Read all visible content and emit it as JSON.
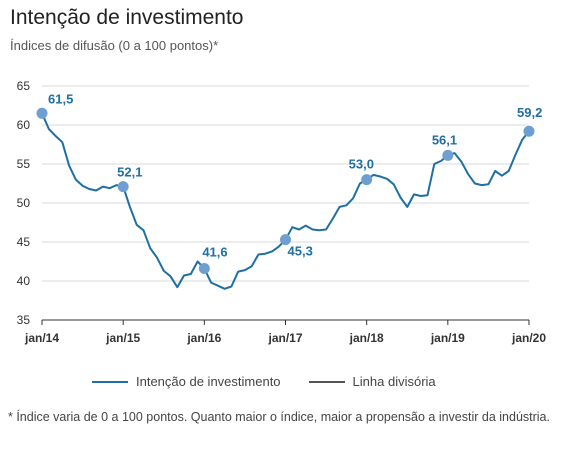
{
  "title": "Intenção de investimento",
  "subtitle": "Índices de difusão (0 a 100 pontos)*",
  "footnote": "* Índice varia de 0 a 100 pontos. Quanto maior o índice, maior a propensão a investir da indústria.",
  "colors": {
    "series": "#1f6fa3",
    "marker": "#6e9fd0",
    "divider": "#555555",
    "label": "#1f6fa3"
  },
  "chart_data": {
    "type": "line",
    "ylim": [
      35,
      65
    ],
    "yticks": [
      35,
      40,
      45,
      50,
      55,
      60,
      65
    ],
    "xticks": [
      {
        "label": "jan/14",
        "index": 0
      },
      {
        "label": "jan/15",
        "index": 12
      },
      {
        "label": "jan/16",
        "index": 24
      },
      {
        "label": "jan/17",
        "index": 36
      },
      {
        "label": "jan/18",
        "index": 48
      },
      {
        "label": "jan/19",
        "index": 60
      },
      {
        "label": "jan/20",
        "index": 72
      }
    ],
    "series": [
      {
        "name": "Intenção de investimento",
        "start": "jan/14",
        "frequency": "monthly",
        "values": [
          61.5,
          59.5,
          58.6,
          57.8,
          54.8,
          53.0,
          52.2,
          51.8,
          51.6,
          52.1,
          51.9,
          52.3,
          52.1,
          49.5,
          47.2,
          46.5,
          44.2,
          43.0,
          41.3,
          40.6,
          39.2,
          40.7,
          40.9,
          42.5,
          41.6,
          39.8,
          39.4,
          39.0,
          39.3,
          41.2,
          41.4,
          41.9,
          43.4,
          43.5,
          43.8,
          44.4,
          45.3,
          46.9,
          46.6,
          47.1,
          46.6,
          46.5,
          46.6,
          48.0,
          49.5,
          49.7,
          50.6,
          52.5,
          53.0,
          53.6,
          53.4,
          53.1,
          52.4,
          50.7,
          49.5,
          51.1,
          50.9,
          51.0,
          55.0,
          55.4,
          56.1,
          56.4,
          55.3,
          53.7,
          52.5,
          52.3,
          52.4,
          54.1,
          53.5,
          54.1,
          56.2,
          58.1,
          59.2
        ]
      }
    ],
    "annotations": [
      {
        "index": 0,
        "value": 61.5,
        "text": "61,5"
      },
      {
        "index": 12,
        "value": 52.1,
        "text": "52,1"
      },
      {
        "index": 24,
        "value": 41.6,
        "text": "41,6"
      },
      {
        "index": 36,
        "value": 45.3,
        "text": "45,3"
      },
      {
        "index": 48,
        "value": 53.0,
        "text": "53,0"
      },
      {
        "index": 60,
        "value": 56.1,
        "text": "56,1"
      },
      {
        "index": 72,
        "value": 59.2,
        "text": "59,2"
      }
    ],
    "legend": [
      {
        "name": "Intenção de investimento",
        "color": "#1f6fa3"
      },
      {
        "name": "Linha divisória",
        "color": "#555555"
      }
    ]
  }
}
